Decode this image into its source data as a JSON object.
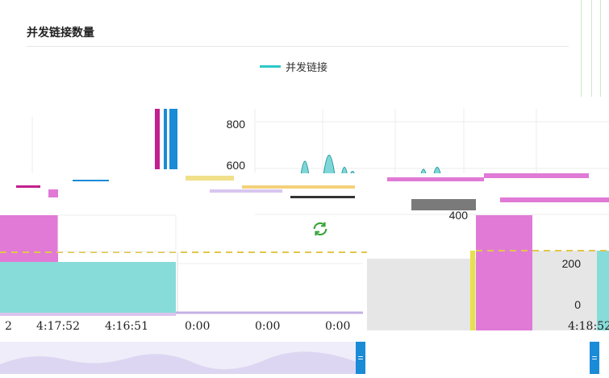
{
  "panel": {
    "title": "并发链接数量",
    "legend_label": "并发链接"
  },
  "chart_data": {
    "type": "area",
    "title": "并发链接数量",
    "series": [
      {
        "name": "并发链接",
        "color": "#2ec7c9"
      }
    ],
    "y_ticks": [
      "800",
      "600",
      "400",
      "200",
      "0"
    ],
    "x_ticks": [
      "2",
      "4:17:52",
      "4:16:51",
      "0:00",
      "0:00",
      "0:00",
      "4:18:52"
    ],
    "ylim": [
      0,
      800
    ]
  },
  "icons": {
    "refresh": "refresh-icon",
    "zoom_left": "zoom-handle-icon",
    "zoom_right": "zoom-handle-icon"
  },
  "colors": {
    "series": "#2ec7c9",
    "magenta": "#e07ad6",
    "slider": "#1a8bd6"
  }
}
